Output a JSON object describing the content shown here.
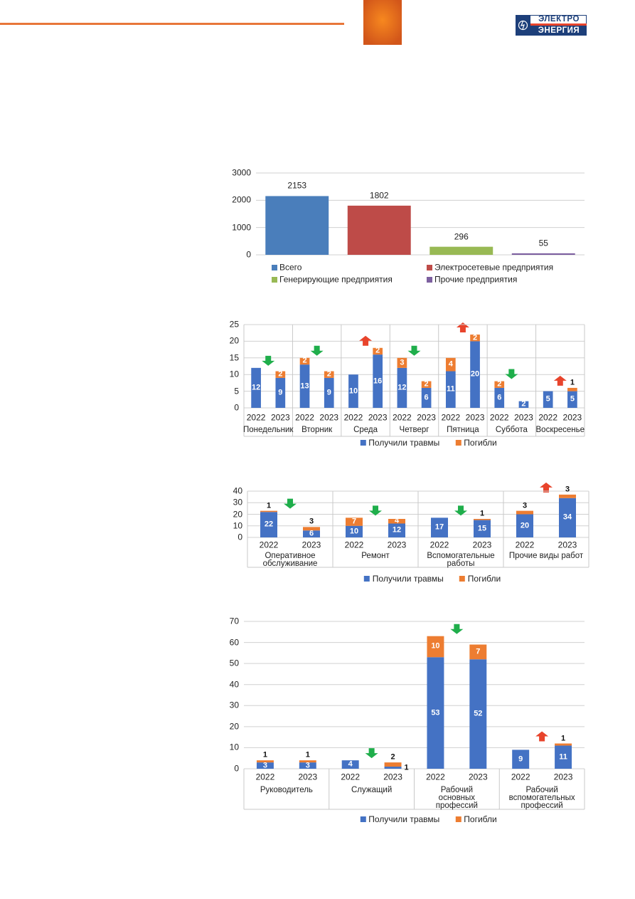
{
  "header": {
    "logo": [
      "ЭЛЕКТРО",
      "ЭНЕРГИЯ"
    ]
  },
  "chart_data": [
    {
      "type": "bar",
      "categories": [
        null
      ],
      "series": [
        {
          "name": "Всего",
          "color": "#4a7ebb",
          "values": [
            2153
          ]
        },
        {
          "name": "Электросетевые предприятия",
          "color": "#be4b48",
          "values": [
            1802
          ]
        },
        {
          "name": "Генерирующие предприятия",
          "color": "#98b954",
          "values": [
            296
          ]
        },
        {
          "name": "Прочие предприятия",
          "color": "#7d60a0",
          "values": [
            55
          ]
        }
      ],
      "ylim": [
        0,
        3000
      ],
      "yticks": [
        0,
        1000,
        2000,
        3000
      ],
      "grid": true,
      "legend": "bottom"
    },
    {
      "type": "stacked_bar",
      "categories": [
        "2022",
        "2023",
        "2022",
        "2023",
        "2022",
        "2023",
        "2022",
        "2023",
        "2022",
        "2023",
        "2022",
        "2023",
        "2022",
        "2023"
      ],
      "groups": [
        "Понедельник",
        "Вторник",
        "Среда",
        "Четверг",
        "Пятница",
        "Суббота",
        "Воскресенье"
      ],
      "series": [
        {
          "name": "Получили травмы",
          "color": "#4472c4",
          "values": [
            12,
            9,
            13,
            9,
            10,
            16,
            12,
            6,
            11,
            20,
            6,
            2,
            5,
            5
          ]
        },
        {
          "name": "Погибли",
          "color": "#ed7d31",
          "values": [
            null,
            2,
            2,
            2,
            null,
            2,
            3,
            2,
            4,
            2,
            2,
            null,
            null,
            1
          ]
        }
      ],
      "ylim": [
        0,
        25
      ],
      "yticks": [
        0,
        5,
        10,
        15,
        20,
        25
      ],
      "grid": true,
      "trend": [
        "down",
        "down",
        "up",
        "down",
        "up",
        "down",
        "up"
      ],
      "legend": "bottom"
    },
    {
      "type": "stacked_bar",
      "categories": [
        "2022",
        "2023",
        "2022",
        "2023",
        "2022",
        "2023",
        "2022",
        "2023"
      ],
      "groups": [
        "Оперативное\nобслуживание",
        "Ремонт",
        "Вспомогательные\nработы",
        "Прочие виды работ"
      ],
      "series": [
        {
          "name": "Получили травмы",
          "color": "#4472c4",
          "values": [
            22,
            6,
            10,
            12,
            17,
            15,
            20,
            34
          ]
        },
        {
          "name": "Погибли",
          "color": "#ed7d31",
          "values": [
            1,
            3,
            7,
            4,
            null,
            1,
            3,
            3
          ]
        }
      ],
      "ylim": [
        0,
        40
      ],
      "yticks": [
        0,
        10,
        20,
        30,
        40
      ],
      "grid": true,
      "trend": [
        "down",
        "down",
        "down",
        "up"
      ],
      "legend": "bottom"
    },
    {
      "type": "stacked_bar",
      "categories": [
        "2022",
        "2023",
        "2022",
        "2023",
        "2022",
        "2023",
        "2022",
        "2023"
      ],
      "groups": [
        "Руководитель",
        "Служащий",
        "Рабочий\nосновных\nпрофессий",
        "Рабочий\nвспомогательных\nпрофессий"
      ],
      "series": [
        {
          "name": "Получили травмы",
          "color": "#4472c4",
          "values": [
            3,
            3,
            4,
            1,
            53,
            52,
            9,
            11
          ]
        },
        {
          "name": "Погибли",
          "color": "#ed7d31",
          "values": [
            1,
            1,
            null,
            2,
            10,
            7,
            null,
            1
          ]
        }
      ],
      "ylim": [
        0,
        70
      ],
      "yticks": [
        0,
        10,
        20,
        30,
        40,
        50,
        60,
        70
      ],
      "grid": true,
      "trend": [
        null,
        "down",
        "down",
        "up"
      ],
      "legend": "bottom"
    }
  ]
}
